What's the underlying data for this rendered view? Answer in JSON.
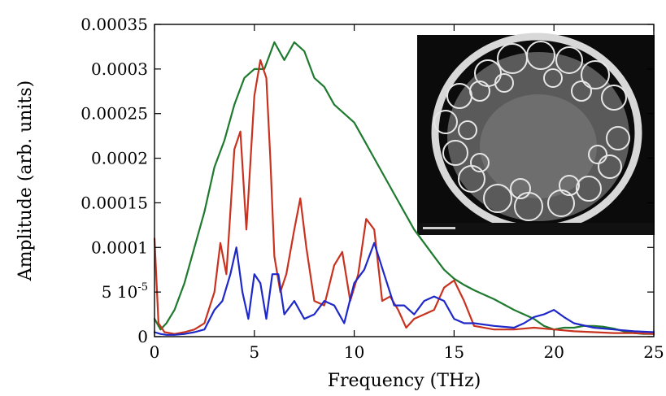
{
  "chart_data": {
    "type": "line",
    "title": "",
    "xlabel": "Frequency (THz)",
    "ylabel": "Amplitude (arb. units)",
    "xlim": [
      0,
      25
    ],
    "ylim": [
      0,
      0.00035
    ],
    "x_ticks": [
      0,
      5,
      10,
      15,
      20,
      25
    ],
    "x_tick_labels": [
      "0",
      "5",
      "10",
      "15",
      "20",
      "25"
    ],
    "y_ticks": [
      0,
      5e-05,
      0.0001,
      0.00015,
      0.0002,
      0.00025,
      0.0003,
      0.00035
    ],
    "y_tick_labels": [
      "0",
      "5 10",
      "0.0001",
      "0.00015",
      "0.0002",
      "0.00025",
      "0.0003",
      "0.00035"
    ],
    "y_tick_exponent_label": "-5",
    "grid": false,
    "legend": "none",
    "inset": "grayscale micrograph of a circular cell with a foam-like network of bright boundaries along its rim",
    "series": [
      {
        "color": "#1e7a2e",
        "x": [
          0,
          0.3,
          0.6,
          1.0,
          1.5,
          2.0,
          2.5,
          3.0,
          3.5,
          4.0,
          4.5,
          5.0,
          5.5,
          6.0,
          6.5,
          7.0,
          7.5,
          8.0,
          8.5,
          9.0,
          9.5,
          10.0,
          10.5,
          11.0,
          11.5,
          12.0,
          12.5,
          13.0,
          13.5,
          14.0,
          14.5,
          15.0,
          15.5,
          16.0,
          16.5,
          17.0,
          17.5,
          18.0,
          18.5,
          19.0,
          19.5,
          20.0,
          20.5,
          21.0,
          21.5,
          22.0,
          22.5,
          23.0,
          23.5,
          24.0,
          24.5,
          25.0
        ],
        "values": [
          2e-05,
          8e-06,
          1.5e-05,
          3e-05,
          6e-05,
          0.0001,
          0.00014,
          0.00019,
          0.00022,
          0.00026,
          0.00029,
          0.0003,
          0.0003,
          0.00033,
          0.00031,
          0.00033,
          0.00032,
          0.00029,
          0.00028,
          0.00026,
          0.00025,
          0.00024,
          0.00022,
          0.0002,
          0.00018,
          0.00016,
          0.00014,
          0.00012,
          0.000105,
          9e-05,
          7.5e-05,
          6.5e-05,
          5.8e-05,
          5.2e-05,
          4.7e-05,
          4.2e-05,
          3.6e-05,
          3e-05,
          2.5e-05,
          2e-05,
          1.2e-05,
          8e-06,
          1e-05,
          1e-05,
          1.2e-05,
          1.2e-05,
          1.1e-05,
          9e-06,
          6e-06,
          4e-06,
          3e-06,
          3e-06
        ]
      },
      {
        "color": "#c8321e",
        "x": [
          0,
          0.2,
          0.5,
          1.0,
          1.5,
          2.0,
          2.5,
          3.0,
          3.3,
          3.6,
          4.0,
          4.3,
          4.6,
          5.0,
          5.3,
          5.6,
          5.8,
          6.0,
          6.3,
          6.6,
          7.0,
          7.3,
          7.6,
          8.0,
          8.5,
          9.0,
          9.4,
          9.8,
          10.2,
          10.6,
          11.0,
          11.4,
          11.8,
          12.2,
          12.6,
          13.0,
          13.5,
          14.0,
          14.5,
          15.0,
          15.5,
          16.0,
          17.0,
          18.0,
          19.0,
          20.0,
          21.0,
          22.0,
          23.0,
          24.0,
          25.0
        ],
        "values": [
          0.00011,
          1.5e-05,
          5e-06,
          3e-06,
          5e-06,
          8e-06,
          1.5e-05,
          5e-05,
          0.000105,
          7e-05,
          0.00021,
          0.00023,
          0.00012,
          0.00027,
          0.00031,
          0.00029,
          0.0002,
          9e-05,
          5e-05,
          7e-05,
          0.00012,
          0.000155,
          0.0001,
          4e-05,
          3.5e-05,
          8e-05,
          9.5e-05,
          4e-05,
          7e-05,
          0.000132,
          0.00012,
          4e-05,
          4.5e-05,
          3e-05,
          1e-05,
          2e-05,
          2.5e-05,
          3e-05,
          5.5e-05,
          6.3e-05,
          4e-05,
          1.2e-05,
          8e-06,
          8e-06,
          1e-05,
          8e-06,
          6e-06,
          5e-06,
          4e-06,
          4e-06,
          3e-06
        ]
      },
      {
        "color": "#1e28c8",
        "x": [
          0,
          0.3,
          0.6,
          1.0,
          1.5,
          2.0,
          2.5,
          3.0,
          3.4,
          3.8,
          4.1,
          4.4,
          4.7,
          5.0,
          5.3,
          5.6,
          5.9,
          6.2,
          6.5,
          7.0,
          7.5,
          8.0,
          8.5,
          9.0,
          9.5,
          10.0,
          10.5,
          11.0,
          11.5,
          12.0,
          12.5,
          13.0,
          13.5,
          14.0,
          14.5,
          15.0,
          15.5,
          16.0,
          17.0,
          18.0,
          18.5,
          19.0,
          19.5,
          20.0,
          20.5,
          21.0,
          22.0,
          23.0,
          24.0,
          25.0
        ],
        "values": [
          5e-06,
          3e-06,
          2e-06,
          2e-06,
          3e-06,
          5e-06,
          8e-06,
          3e-05,
          4e-05,
          7e-05,
          0.0001,
          5e-05,
          2e-05,
          7e-05,
          6e-05,
          2e-05,
          7e-05,
          7e-05,
          2.5e-05,
          4e-05,
          2e-05,
          2.5e-05,
          4e-05,
          3.5e-05,
          1.5e-05,
          6e-05,
          7.5e-05,
          0.000105,
          7e-05,
          3.5e-05,
          3.5e-05,
          2.5e-05,
          4e-05,
          4.5e-05,
          4e-05,
          2e-05,
          1.5e-05,
          1.5e-05,
          1.2e-05,
          1e-05,
          1.5e-05,
          2.2e-05,
          2.5e-05,
          3e-05,
          2.2e-05,
          1.5e-05,
          1e-05,
          8e-06,
          6e-06,
          5e-06
        ]
      }
    ]
  }
}
